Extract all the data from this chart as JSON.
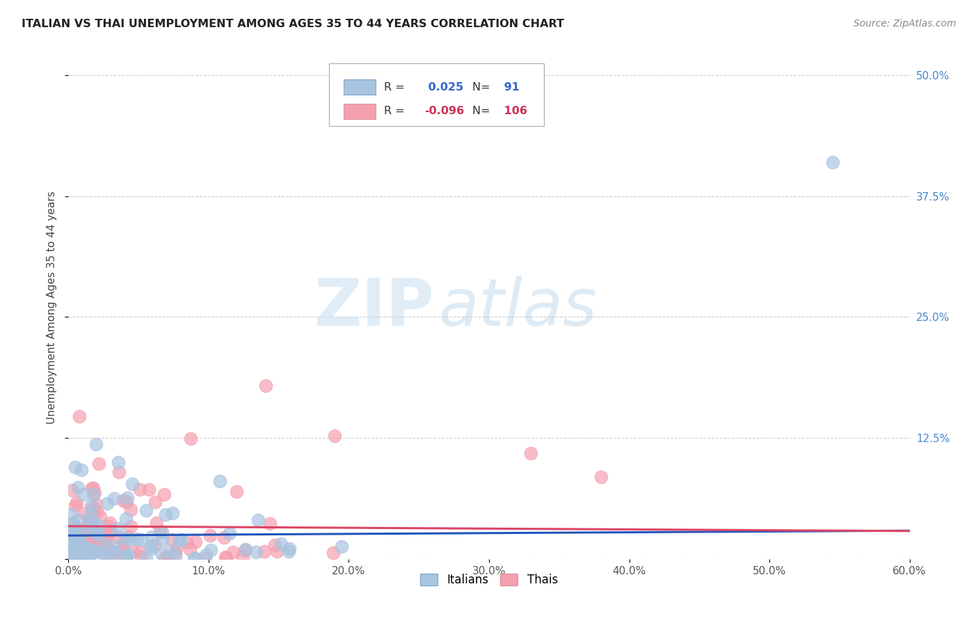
{
  "title": "ITALIAN VS THAI UNEMPLOYMENT AMONG AGES 35 TO 44 YEARS CORRELATION CHART",
  "source": "Source: ZipAtlas.com",
  "ylabel": "Unemployment Among Ages 35 to 44 years",
  "xlim": [
    0.0,
    0.6
  ],
  "ylim": [
    0.0,
    0.52
  ],
  "xticks": [
    0.0,
    0.1,
    0.2,
    0.3,
    0.4,
    0.5,
    0.6
  ],
  "xticklabels": [
    "0.0%",
    "10.0%",
    "20.0%",
    "30.0%",
    "40.0%",
    "50.0%",
    "60.0%"
  ],
  "yticks": [
    0.0,
    0.125,
    0.25,
    0.375,
    0.5
  ],
  "yticklabels": [
    "",
    "12.5%",
    "25.0%",
    "37.5%",
    "50.0%"
  ],
  "grid_color": "#cccccc",
  "background_color": "#ffffff",
  "italian_color": "#a8c4e0",
  "thai_color": "#f4a0b0",
  "italian_line_color": "#2255bb",
  "thai_line_color": "#dd4466",
  "legend_R_italian": "0.025",
  "legend_N_italian": "91",
  "legend_R_thai": "-0.096",
  "legend_N_thai": "106",
  "watermark_zip": "ZIP",
  "watermark_atlas": "atlas",
  "n_italian": 91,
  "n_thai": 106
}
